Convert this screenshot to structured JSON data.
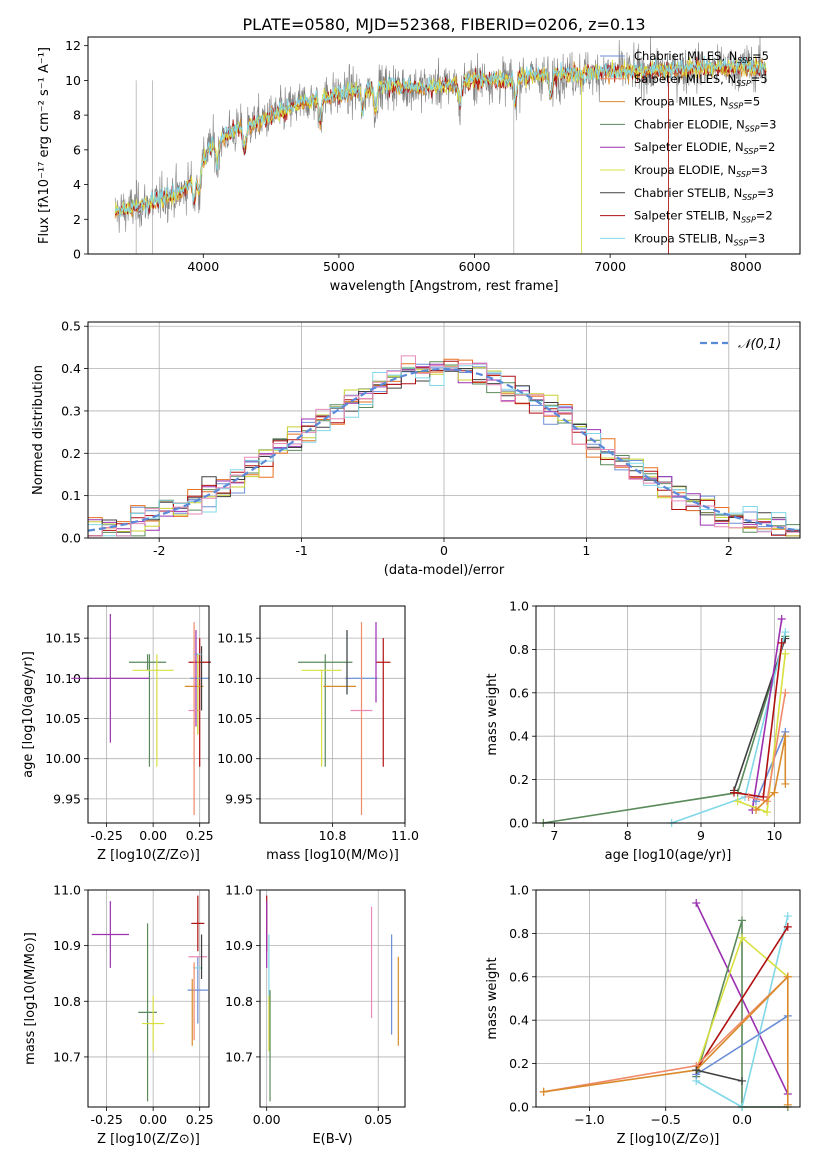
{
  "figure": {
    "title": "PLATE=0580, MJD=52368, FIBERID=0206, z=0.13"
  },
  "colors": {
    "Chabrier MILES": "#6b8ed6",
    "Salpeter MILES": "#f08a6a",
    "Kroupa MILES": "#d98b2b",
    "Chabrier ELODIE": "#5b8a5b",
    "Salpeter ELODIE": "#9b30b0",
    "Kroupa ELODIE": "#d8e040",
    "Chabrier STELIB": "#404040",
    "Salpeter STELIB": "#b01010",
    "Kroupa STELIB": "#80d8e8",
    "data": "#808080",
    "normal": "#5b8ad8",
    "extra_pink": "#e88ab8",
    "extra_olive": "#c8d030",
    "extra_orange": "#e87020"
  },
  "chart_data": [
    {
      "id": "spectrum",
      "type": "line",
      "title": "PLATE=0580, MJD=52368, FIBERID=0206, z=0.13",
      "xlabel": "wavelength [Angstrom, rest frame]",
      "ylabel": "Flux [fλ10⁻¹⁷ erg cm⁻² s⁻¹ A⁻¹]",
      "xlim": [
        3150,
        8400
      ],
      "ylim": [
        0,
        12.5
      ],
      "xticks": [
        4000,
        5000,
        6000,
        7000,
        8000
      ],
      "yticks": [
        0,
        2,
        4,
        6,
        8,
        10,
        12
      ],
      "grid": false,
      "legend_position": "top-right",
      "legend": [
        "Chabrier MILES, N_SSP=5",
        "Salpeter MILES, N_SSP=5",
        "Kroupa MILES, N_SSP=5",
        "Chabrier ELODIE, N_SSP=3",
        "Salpeter ELODIE, N_SSP=2",
        "Kroupa ELODIE, N_SSP=3",
        "Chabrier STELIB, N_SSP=3",
        "Salpeter STELIB, N_SSP=2",
        "Kroupa STELIB, N_SSP=3"
      ],
      "continuum": {
        "x": [
          3350,
          3500,
          3700,
          3850,
          3950,
          4050,
          4200,
          4400,
          4600,
          4800,
          5000,
          5200,
          5400,
          5600,
          5800,
          6000,
          6200,
          6500,
          6800,
          7000,
          7200,
          7400,
          7700,
          8000,
          8150
        ],
        "y": [
          2.4,
          2.7,
          3.2,
          3.6,
          4.6,
          6.2,
          7.0,
          7.6,
          8.3,
          8.9,
          9.2,
          9.5,
          9.7,
          9.6,
          9.7,
          10.1,
          10.0,
          10.3,
          10.4,
          10.5,
          10.5,
          10.6,
          10.7,
          10.8,
          10.7
        ]
      }
    },
    {
      "id": "residuals",
      "type": "histogram",
      "xlabel": "(data-model)/error",
      "ylabel": "Normed distribution",
      "xlim": [
        -2.5,
        2.5
      ],
      "ylim": [
        0,
        0.51
      ],
      "xticks": [
        -2,
        -1,
        0,
        1,
        2
      ],
      "yticks": [
        0.0,
        0.1,
        0.2,
        0.3,
        0.4,
        0.5
      ],
      "grid": true,
      "legend": [
        "𝒩(0,1)"
      ],
      "legend_position": "top-right",
      "bin_width": 0.1
    },
    {
      "id": "age-vs-Z",
      "type": "errorbar",
      "xlabel": "Z [log10(Z/Z⊙)]",
      "ylabel": "age  [log10(age/yr)]",
      "xlim": [
        -0.35,
        0.3
      ],
      "ylim": [
        9.92,
        10.19
      ],
      "xticks": [
        -0.25,
        0.0,
        0.25
      ],
      "yticks": [
        9.95,
        10.0,
        10.05,
        10.1,
        10.15
      ],
      "points": [
        {
          "model": "Salpeter ELODIE",
          "x": -0.23,
          "xerr": 0.42,
          "y": 10.1,
          "yerr": 0.08
        },
        {
          "model": "Chabrier ELODIE",
          "x": -0.03,
          "xerr": 0.2,
          "y": 10.12,
          "yerr": 0.01
        },
        {
          "model": "Chabrier ELODIE",
          "x": -0.02,
          "xerr": 0.0,
          "y": 10.06,
          "yerr": 0.07
        },
        {
          "model": "Kroupa ELODIE",
          "x": 0.0,
          "xerr": 0.22,
          "y": 10.11,
          "yerr": 0.0
        },
        {
          "model": "Kroupa ELODIE",
          "x": 0.02,
          "xerr": 0.0,
          "y": 10.06,
          "yerr": 0.07
        },
        {
          "model": "Salpeter STELIB",
          "x": 0.25,
          "xerr": 0.12,
          "y": 10.12,
          "yerr": 0.0
        },
        {
          "model": "Salpeter STELIB",
          "x": 0.25,
          "xerr": 0.0,
          "y": 10.07,
          "yerr": 0.08
        },
        {
          "model": "Chabrier MILES",
          "x": 0.25,
          "xerr": 0.1,
          "y": 10.1,
          "yerr": 0.0
        },
        {
          "model": "Kroupa MILES",
          "x": 0.22,
          "xerr": 0.1,
          "y": 10.09,
          "yerr": 0.0
        },
        {
          "model": "Salpeter MILES",
          "x": 0.22,
          "xerr": 0.0,
          "y": 10.05,
          "yerr": 0.12
        },
        {
          "model": "Chabrier STELIB",
          "x": 0.26,
          "xerr": 0.0,
          "y": 10.1,
          "yerr": 0.04
        },
        {
          "model": "Kroupa STELIB",
          "x": 0.24,
          "xerr": 0.04,
          "y": 10.13,
          "yerr": 0.0
        },
        {
          "model": "Salpeter ELODIE",
          "x": 0.23,
          "xerr": 0.0,
          "y": 10.1,
          "yerr": 0.06
        },
        {
          "model": "extra_pink",
          "x": 0.22,
          "xerr": 0.06,
          "y": 10.06,
          "yerr": 0.0
        },
        {
          "model": "extra_olive",
          "x": 0.24,
          "xerr": 0.0,
          "y": 10.08,
          "yerr": 0.05
        }
      ]
    },
    {
      "id": "age-vs-mass",
      "type": "errorbar",
      "xlabel": "mass [log10(M/M⊙)]",
      "ylabel": "",
      "xlim": [
        10.6,
        11.0
      ],
      "ylim": [
        9.92,
        10.19
      ],
      "xticks": [
        10.8,
        11.0
      ],
      "yticks": [
        9.95,
        10.0,
        10.05,
        10.1,
        10.15
      ],
      "points": [
        {
          "model": "Chabrier ELODIE",
          "x": 10.78,
          "xerr": 0.15,
          "y": 10.12,
          "yerr": 0.0
        },
        {
          "model": "Chabrier ELODIE",
          "x": 10.78,
          "xerr": 0.0,
          "y": 10.06,
          "yerr": 0.07
        },
        {
          "model": "Kroupa ELODIE",
          "x": 10.77,
          "xerr": 0.11,
          "y": 10.11,
          "yerr": 0.0
        },
        {
          "model": "Kroupa ELODIE",
          "x": 10.77,
          "xerr": 0.0,
          "y": 10.05,
          "yerr": 0.06
        },
        {
          "model": "Kroupa MILES",
          "x": 10.82,
          "xerr": 0.09,
          "y": 10.09,
          "yerr": 0.0
        },
        {
          "model": "Chabrier MILES",
          "x": 10.88,
          "xerr": 0.09,
          "y": 10.1,
          "yerr": 0.0
        },
        {
          "model": "Salpeter STELIB",
          "x": 10.94,
          "xerr": 0.04,
          "y": 10.12,
          "yerr": 0.0
        },
        {
          "model": "Salpeter STELIB",
          "x": 10.94,
          "xerr": 0.0,
          "y": 10.07,
          "yerr": 0.08
        },
        {
          "model": "Salpeter MILES",
          "x": 10.88,
          "xerr": 0.0,
          "y": 10.05,
          "yerr": 0.12
        },
        {
          "model": "extra_pink",
          "x": 10.88,
          "xerr": 0.06,
          "y": 10.06,
          "yerr": 0.0
        },
        {
          "model": "Kroupa STELIB",
          "x": 10.84,
          "xerr": 0.0,
          "y": 10.12,
          "yerr": 0.04
        },
        {
          "model": "Salpeter ELODIE",
          "x": 10.92,
          "xerr": 0.0,
          "y": 10.12,
          "yerr": 0.05
        },
        {
          "model": "Chabrier STELIB",
          "x": 10.84,
          "xerr": 0.0,
          "y": 10.12,
          "yerr": 0.04
        }
      ]
    },
    {
      "id": "mass-weight-vs-age",
      "type": "line",
      "xlabel": "age  [log10(age/yr)]",
      "ylabel": "mass weight",
      "xlim": [
        6.75,
        10.35
      ],
      "ylim": [
        0,
        1.0
      ],
      "xticks": [
        7,
        8,
        9,
        10
      ],
      "yticks": [
        0.0,
        0.2,
        0.4,
        0.6,
        0.8,
        1.0
      ],
      "grid": true,
      "series": [
        {
          "name": "Chabrier ELODIE",
          "x": [
            6.85,
            9.5,
            10.15
          ],
          "y": [
            0.0,
            0.14,
            0.86
          ]
        },
        {
          "name": "Chabrier STELIB",
          "x": [
            9.45,
            10.15
          ],
          "y": [
            0.15,
            0.85
          ]
        },
        {
          "name": "Kroupa STELIB",
          "x": [
            8.6,
            9.6,
            10.15
          ],
          "y": [
            0.0,
            0.12,
            0.88
          ]
        },
        {
          "name": "Salpeter ELODIE",
          "x": [
            9.7,
            10.1
          ],
          "y": [
            0.06,
            0.94
          ]
        },
        {
          "name": "Chabrier MILES",
          "x": [
            9.75,
            10.15
          ],
          "y": [
            0.1,
            0.42
          ]
        },
        {
          "name": "Kroupa ELODIE",
          "x": [
            9.5,
            9.9,
            10.15
          ],
          "y": [
            0.1,
            0.05,
            0.78
          ]
        },
        {
          "name": "Salpeter STELIB",
          "x": [
            9.45,
            9.85,
            10.1
          ],
          "y": [
            0.14,
            0.12,
            0.83
          ]
        },
        {
          "name": "Salpeter MILES",
          "x": [
            9.65,
            9.9,
            10.15
          ],
          "y": [
            0.12,
            0.1,
            0.6
          ]
        },
        {
          "name": "Kroupa MILES",
          "x": [
            9.75,
            10.0,
            10.15,
            10.15
          ],
          "y": [
            0.06,
            0.14,
            0.4,
            0.18
          ]
        }
      ]
    },
    {
      "id": "mass-vs-Z",
      "type": "errorbar",
      "xlabel": "Z [log10(Z/Z⊙)]",
      "ylabel": "mass [log10(M/M⊙)]",
      "xlim": [
        -0.35,
        0.3
      ],
      "ylim": [
        10.61,
        11.0
      ],
      "xticks": [
        -0.25,
        0.0,
        0.25
      ],
      "yticks": [
        10.7,
        10.8,
        10.9,
        11.0
      ],
      "points": [
        {
          "model": "Salpeter ELODIE",
          "x": -0.23,
          "xerr": 0.2,
          "y": 10.92,
          "yerr": 0.06
        },
        {
          "model": "Chabrier ELODIE",
          "x": -0.03,
          "xerr": 0.1,
          "y": 10.78,
          "yerr": 0.16
        },
        {
          "model": "Kroupa ELODIE",
          "x": 0.0,
          "xerr": 0.12,
          "y": 10.76,
          "yerr": 0.05
        },
        {
          "model": "Salpeter STELIB",
          "x": 0.24,
          "xerr": 0.07,
          "y": 10.94,
          "yerr": 0.05
        },
        {
          "model": "Chabrier MILES",
          "x": 0.24,
          "xerr": 0.11,
          "y": 10.82,
          "yerr": 0.06
        },
        {
          "model": "extra_pink",
          "x": 0.24,
          "xerr": 0.1,
          "y": 10.88,
          "yerr": 0.0
        },
        {
          "model": "Kroupa STELIB",
          "x": 0.24,
          "xerr": 0.05,
          "y": 10.86,
          "yerr": 0.0
        },
        {
          "model": "Kroupa MILES",
          "x": 0.21,
          "xerr": 0.0,
          "y": 10.78,
          "yerr": 0.06
        },
        {
          "model": "Salpeter MILES",
          "x": 0.22,
          "xerr": 0.0,
          "y": 10.8,
          "yerr": 0.07
        },
        {
          "model": "Chabrier STELIB",
          "x": 0.26,
          "xerr": 0.0,
          "y": 10.88,
          "yerr": 0.04
        }
      ]
    },
    {
      "id": "mass-vs-EBV",
      "type": "errorbar",
      "xlabel": "E(B-V)",
      "ylabel": "",
      "xlim": [
        -0.003,
        0.062
      ],
      "ylim": [
        10.61,
        11.0
      ],
      "xticks": [
        0.0,
        0.05
      ],
      "yticks": [
        10.7,
        10.8,
        10.9,
        11.0
      ],
      "points": [
        {
          "model": "Salpeter STELIB",
          "x": 0.0,
          "xerr": 0.0,
          "y": 10.94,
          "yerr": 0.05
        },
        {
          "model": "Salpeter ELODIE",
          "x": 0.0,
          "xerr": 0.0,
          "y": 10.92,
          "yerr": 0.06
        },
        {
          "model": "Kroupa STELIB",
          "x": 0.001,
          "xerr": 0.0,
          "y": 10.86,
          "yerr": 0.06
        },
        {
          "model": "Kroupa ELODIE",
          "x": 0.001,
          "xerr": 0.0,
          "y": 10.76,
          "yerr": 0.05
        },
        {
          "model": "Chabrier ELODIE",
          "x": 0.0015,
          "xerr": 0.0,
          "y": 10.72,
          "yerr": 0.1
        },
        {
          "model": "extra_pink",
          "x": 0.047,
          "xerr": 0.0,
          "y": 10.87,
          "yerr": 0.1
        },
        {
          "model": "Chabrier MILES",
          "x": 0.056,
          "xerr": 0.0,
          "y": 10.83,
          "yerr": 0.09
        },
        {
          "model": "Kroupa MILES",
          "x": 0.059,
          "xerr": 0.0,
          "y": 10.8,
          "yerr": 0.08
        }
      ]
    },
    {
      "id": "mass-weight-vs-Z",
      "type": "line",
      "xlabel": "Z [log10(Z/Z⊙)]",
      "ylabel": "mass weight",
      "xlim": [
        -1.35,
        0.38
      ],
      "ylim": [
        0,
        1.0
      ],
      "xticks": [
        -1.0,
        -0.5,
        0.0
      ],
      "yticks": [
        0.0,
        0.2,
        0.4,
        0.6,
        0.8,
        1.0
      ],
      "grid": true,
      "series": [
        {
          "name": "Salpeter ELODIE",
          "x": [
            -0.3,
            0.3
          ],
          "y": [
            0.94,
            0.06
          ]
        },
        {
          "name": "Chabrier ELODIE",
          "x": [
            -0.3,
            0.0,
            0.0,
            0.3
          ],
          "y": [
            0.14,
            0.86,
            0.0,
            0.0
          ]
        },
        {
          "name": "Kroupa STELIB",
          "x": [
            -0.3,
            0.0,
            0.3
          ],
          "y": [
            0.12,
            0.0,
            0.88
          ]
        },
        {
          "name": "Kroupa ELODIE",
          "x": [
            -0.3,
            0.0,
            0.3
          ],
          "y": [
            0.17,
            0.78,
            0.6
          ]
        },
        {
          "name": "Salpeter STELIB",
          "x": [
            -0.3,
            0.3
          ],
          "y": [
            0.17,
            0.83
          ]
        },
        {
          "name": "Chabrier MILES",
          "x": [
            -0.3,
            0.3
          ],
          "y": [
            0.15,
            0.42
          ]
        },
        {
          "name": "Salpeter MILES",
          "x": [
            -1.3,
            -0.3,
            0.3
          ],
          "y": [
            0.07,
            0.19,
            0.6
          ]
        },
        {
          "name": "Kroupa MILES",
          "x": [
            -1.3,
            -0.3,
            0.3,
            0.3
          ],
          "y": [
            0.07,
            0.17,
            0.6,
            0.01
          ]
        },
        {
          "name": "Chabrier STELIB",
          "x": [
            -0.3,
            0.0
          ],
          "y": [
            0.17,
            0.12
          ]
        }
      ]
    }
  ]
}
